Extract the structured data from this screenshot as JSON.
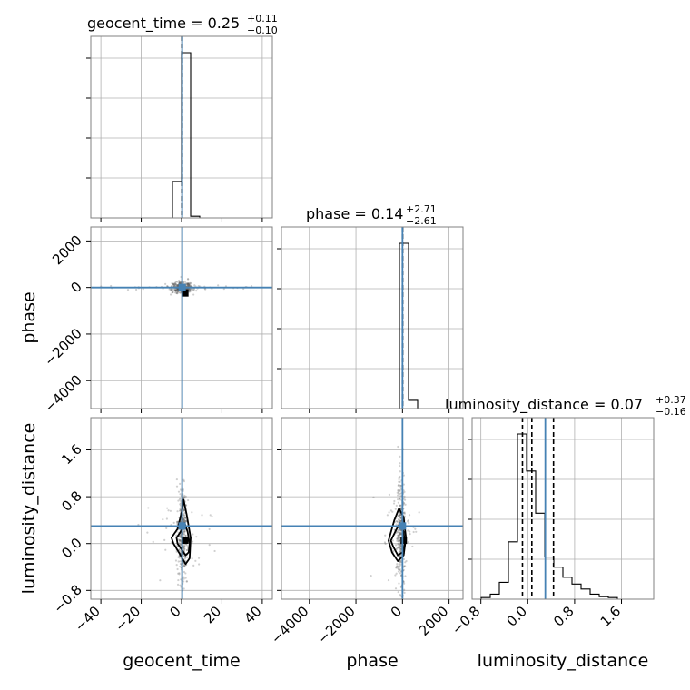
{
  "chart_data": {
    "type": "corner",
    "parameters": [
      "geocent_time",
      "phase",
      "luminosity_distance"
    ],
    "titles": [
      {
        "param": "geocent_time",
        "prefix": "geocent_time = ",
        "median": "0.25",
        "plus": "+0.11",
        "minus": "−0.10"
      },
      {
        "param": "phase",
        "prefix": "phase = ",
        "median": "0.14",
        "plus": "+2.71",
        "minus": "−2.61"
      },
      {
        "param": "luminosity_distance",
        "prefix": "luminosity_distance = ",
        "median": "0.07",
        "plus": "+0.37",
        "minus": "−0.16"
      }
    ],
    "axes": {
      "geocent_time": {
        "range": [
          -45,
          45
        ],
        "ticks": [
          -40,
          -20,
          0,
          20,
          40
        ],
        "tick_labels": [
          "−40",
          "−20",
          "0",
          "20",
          "40"
        ]
      },
      "phase": {
        "range": [
          -5200,
          2600
        ],
        "ticks": [
          -4000,
          -2000,
          0,
          2000
        ],
        "tick_labels": [
          "−4000",
          "−2000",
          "0",
          "2000"
        ]
      },
      "luminosity_distance": {
        "range": [
          -0.95,
          2.15
        ],
        "ticks": [
          -0.8,
          0.0,
          0.8,
          1.6
        ],
        "tick_labels": [
          "−0.8",
          "0.0",
          "0.8",
          "1.6"
        ]
      }
    },
    "truths": {
      "geocent_time": 0.3,
      "phase": 0.0,
      "luminosity_distance": 0.3
    },
    "quantiles": {
      "geocent_time": [
        0.15,
        0.25,
        0.36
      ],
      "phase": [
        -2.47,
        0.14,
        2.85
      ],
      "luminosity_distance": [
        -0.09,
        0.07,
        0.44
      ]
    },
    "histograms": {
      "geocent_time": {
        "edges": [
          -45,
          -40.5,
          -36,
          -31.5,
          -27,
          -22.5,
          -18,
          -13.5,
          -9,
          -4.5,
          0,
          4.5,
          9,
          13.5,
          18,
          22.5,
          27,
          31.5,
          36,
          40.5,
          45
        ],
        "counts": [
          0,
          0,
          0,
          0,
          0,
          0,
          0,
          0,
          0,
          0.22,
          1.0,
          0.01,
          0,
          0,
          0,
          0,
          0,
          0,
          0,
          0
        ]
      },
      "phase": {
        "edges": [
          -5200,
          -4810,
          -4420,
          -4030,
          -3640,
          -3250,
          -2860,
          -2470,
          -2080,
          -1690,
          -1300,
          -910,
          -520,
          -130,
          260,
          650,
          1040,
          1430,
          1820,
          2210,
          2600
        ],
        "counts": [
          0,
          0,
          0,
          0,
          0,
          0,
          0,
          0,
          0,
          0,
          0,
          0,
          0,
          1.0,
          0.05,
          0,
          0,
          0,
          0,
          0
        ]
      },
      "luminosity_distance": {
        "edges": [
          -0.95,
          -0.795,
          -0.64,
          -0.485,
          -0.33,
          -0.175,
          -0.02,
          0.135,
          0.29,
          0.445,
          0.6,
          0.755,
          0.91,
          1.065,
          1.22,
          1.375,
          1.53,
          1.685,
          1.84,
          1.995,
          2.15
        ],
        "counts": [
          0,
          0.01,
          0.03,
          0.1,
          0.34,
          0.98,
          0.76,
          0.51,
          0.25,
          0.19,
          0.13,
          0.09,
          0.06,
          0.03,
          0.015,
          0.01,
          0,
          0,
          0,
          0
        ]
      }
    },
    "contours": {
      "geocent_time__luminosity_distance": [
        {
          "level": "inner",
          "points": [
            [
              1.5,
              0.35
            ],
            [
              3.0,
              0.2
            ],
            [
              4.0,
              0.0
            ],
            [
              3.5,
              -0.15
            ],
            [
              2.0,
              -0.2
            ],
            [
              0.0,
              -0.1
            ],
            [
              -2.0,
              0.0
            ],
            [
              -2.5,
              0.1
            ],
            [
              -0.5,
              0.2
            ],
            [
              1.0,
              0.3
            ]
          ]
        },
        {
          "level": "outer",
          "points": [
            [
              1.0,
              0.75
            ],
            [
              2.5,
              0.5
            ],
            [
              4.5,
              0.1
            ],
            [
              4.0,
              -0.25
            ],
            [
              2.0,
              -0.35
            ],
            [
              -0.5,
              -0.2
            ],
            [
              -4.0,
              0.0
            ],
            [
              -5.0,
              0.1
            ],
            [
              -2.0,
              0.25
            ],
            [
              0.5,
              0.6
            ]
          ]
        }
      ],
      "phase__luminosity_distance": [
        {
          "level": "inner",
          "points": [
            [
              -100,
              0.35
            ],
            [
              50,
              0.2
            ],
            [
              100,
              0.0
            ],
            [
              0,
              -0.15
            ],
            [
              -200,
              -0.2
            ],
            [
              -400,
              -0.05
            ],
            [
              -500,
              0.05
            ],
            [
              -250,
              0.25
            ]
          ]
        },
        {
          "level": "outer",
          "points": [
            [
              -150,
              0.6
            ],
            [
              50,
              0.45
            ],
            [
              150,
              0.1
            ],
            [
              50,
              -0.2
            ],
            [
              -200,
              -0.3
            ],
            [
              -450,
              -0.15
            ],
            [
              -600,
              0.05
            ],
            [
              -350,
              0.4
            ]
          ]
        }
      ]
    },
    "point_clouds": {
      "geocent_time__phase": {
        "center": [
          0.3,
          0.0
        ],
        "spread": [
          2.5,
          120
        ],
        "outlier_spread": [
          22,
          40
        ]
      },
      "geocent_time__luminosity_distance": {
        "center": [
          0.3,
          0.15
        ],
        "spread": [
          1.2,
          0.4
        ],
        "outlier_spread": [
          10,
          0.4
        ]
      },
      "phase__luminosity_distance": {
        "center": [
          -80,
          0.15
        ],
        "spread": [
          90,
          0.45
        ],
        "outlier_spread": [
          450,
          0.4
        ]
      }
    }
  }
}
